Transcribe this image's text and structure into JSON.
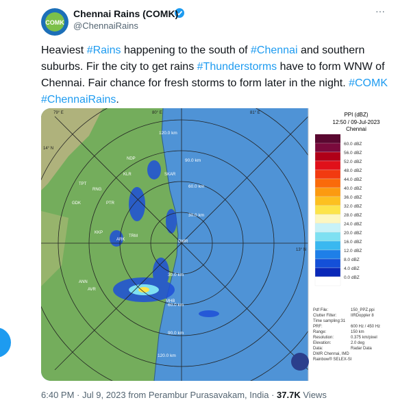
{
  "author": {
    "name": "Chennai Rains (COMK)",
    "handle": "@ChennaiRains",
    "avatar_label": "COMK"
  },
  "more_label": "···",
  "tweet": {
    "segments": [
      {
        "text": "Heaviest "
      },
      {
        "text": "#Rains",
        "link": true
      },
      {
        "text": " happening to the south of "
      },
      {
        "text": "#Chennai",
        "link": true
      },
      {
        "text": " and southern suburbs. Fir the city to get rains "
      },
      {
        "text": "#Thunderstorms",
        "link": true
      },
      {
        "text": " have to form WNW of Chennai. Fair chance for fresh storms to form later in the night. "
      },
      {
        "text": "#COMK",
        "link": true
      },
      {
        "text": " "
      },
      {
        "text": "#ChennaiRains",
        "link": true
      },
      {
        "text": "."
      }
    ]
  },
  "radar": {
    "title": "PPI (dBZ)",
    "time": "12:50 / 09-Jul-2023",
    "station": "Chennai",
    "legend": [
      {
        "label": "60.0 dBZ",
        "color": "#7a0a3c"
      },
      {
        "label": "56.0 dBZ",
        "color": "#b00018"
      },
      {
        "label": "52.0 dBZ",
        "color": "#e0101a"
      },
      {
        "label": "48.0 dBZ",
        "color": "#f23a10"
      },
      {
        "label": "44.0 dBZ",
        "color": "#fa6a0a"
      },
      {
        "label": "40.0 dBZ",
        "color": "#fc9a10"
      },
      {
        "label": "36.0 dBZ",
        "color": "#fdc020"
      },
      {
        "label": "32.0 dBZ",
        "color": "#fde44a"
      },
      {
        "label": "28.0 dBZ",
        "color": "#fdf7c0"
      },
      {
        "label": "24.0 dBZ",
        "color": "#c8f2f8"
      },
      {
        "label": "20.0 dBZ",
        "color": "#7ee0f2"
      },
      {
        "label": "16.0 dBZ",
        "color": "#3ab8f0"
      },
      {
        "label": "12.0 dBZ",
        "color": "#1e7fe8"
      },
      {
        "label": "8.0 dBZ",
        "color": "#1450d8"
      },
      {
        "label": "4.0 dBZ",
        "color": "#0a28b8"
      },
      {
        "label": "0.0 dBZ",
        "color": "#ffffff"
      }
    ],
    "rings_upper": [
      "120.0 km",
      "90.0 km",
      "60.0 km",
      "30.0 km"
    ],
    "rings_lower": [
      "30.0 km",
      "60.0 km",
      "90.0 km",
      "120.0 km"
    ],
    "coords": [
      "79° E",
      "80° E",
      "81° E",
      "14° N",
      "13° N"
    ],
    "places": [
      "NDP",
      "KLR",
      "TPT",
      "RNG",
      "GDK",
      "SKAR",
      "PTR",
      "KKP",
      "TRM",
      "ARK",
      "DWR",
      "ANN",
      "AVR",
      "MHB"
    ],
    "info": [
      [
        "Pdf File:",
        "150_PPZ.ppi"
      ],
      [
        "Clutter Filter:",
        "IIRDoppler 8"
      ],
      [
        "Time sampling:31",
        ""
      ],
      [
        "PRF:",
        "600 Hz / 450 Hz"
      ],
      [
        "Range:",
        "150 km"
      ],
      [
        "Resolution:",
        "0.375 km/pixel"
      ],
      [
        "Elevation:",
        "2.0 deg"
      ],
      [
        "Data:",
        "Radar Data"
      ],
      [
        "DWR Chennai, IMD",
        ""
      ],
      [
        "Rainbow® SELEX-SI",
        ""
      ]
    ]
  },
  "footer": {
    "time": "6:40 PM",
    "separator": "·",
    "date": "Jul 9, 2023",
    "source": "from Perambur Purasavakam, India",
    "views_count": "37.7K",
    "views_label": "Views"
  }
}
